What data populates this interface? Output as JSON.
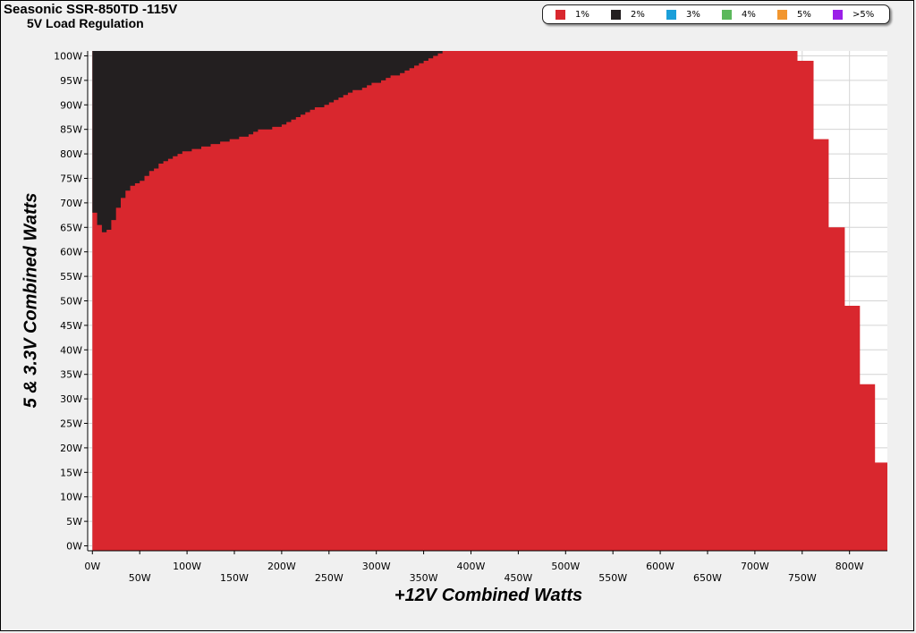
{
  "chart_data": {
    "type": "heatmap",
    "title": "Seasonic SSR-850TD -115V",
    "subtitle": "5V Load Regulation",
    "xlabel": "+12V Combined Watts",
    "ylabel": "5 & 3.3V Combined Watts",
    "xlim": [
      -5,
      840
    ],
    "ylim": [
      -1,
      101
    ],
    "grid": true,
    "legend_position": "top-right",
    "x_tick_labels_row1": [
      "0W",
      "100W",
      "200W",
      "300W",
      "400W",
      "500W",
      "600W",
      "700W",
      "800W"
    ],
    "x_tick_labels_row2": [
      "50W",
      "150W",
      "250W",
      "350W",
      "450W",
      "550W",
      "650W",
      "750W"
    ],
    "y_tick_labels": [
      "0W",
      "5W",
      "10W",
      "15W",
      "20W",
      "25W",
      "30W",
      "35W",
      "40W",
      "45W",
      "50W",
      "55W",
      "60W",
      "65W",
      "70W",
      "75W",
      "80W",
      "85W",
      "90W",
      "95W",
      "100W"
    ],
    "legend": [
      {
        "label": "1%",
        "color": "#d9272e"
      },
      {
        "label": "2%",
        "color": "#231f20"
      },
      {
        "label": "3%",
        "color": "#1b9fd9"
      },
      {
        "label": "4%",
        "color": "#5cb85c"
      },
      {
        "label": "5%",
        "color": "#f2962f"
      },
      {
        "label": ">5%",
        "color": "#9b1fe8"
      }
    ],
    "regions": {
      "load_limit_1pct": [
        [
          0,
          101
        ],
        [
          745,
          101
        ],
        [
          745,
          99
        ],
        [
          762,
          99
        ],
        [
          762,
          83
        ],
        [
          778,
          83
        ],
        [
          778,
          65
        ],
        [
          795,
          65
        ],
        [
          795,
          49
        ],
        [
          811,
          49
        ],
        [
          811,
          33
        ],
        [
          827,
          33
        ],
        [
          827,
          17
        ],
        [
          840,
          17
        ],
        [
          840,
          -1
        ],
        [
          0,
          -1
        ]
      ],
      "boundary_2pct_to_1pct": [
        [
          0,
          68.5
        ],
        [
          5,
          67
        ],
        [
          10,
          64
        ],
        [
          15,
          64
        ],
        [
          20,
          65
        ],
        [
          30,
          70
        ],
        [
          40,
          73
        ],
        [
          50,
          74
        ],
        [
          60,
          76
        ],
        [
          70,
          77.5
        ],
        [
          80,
          79
        ],
        [
          100,
          80.5
        ],
        [
          120,
          81.5
        ],
        [
          140,
          82.5
        ],
        [
          160,
          83.5
        ],
        [
          180,
          85
        ],
        [
          200,
          85.5
        ],
        [
          220,
          88
        ],
        [
          240,
          89.5
        ],
        [
          260,
          91
        ],
        [
          280,
          93
        ],
        [
          300,
          94.5
        ],
        [
          320,
          96
        ],
        [
          340,
          97.5
        ],
        [
          350,
          98.5
        ],
        [
          365,
          100
        ],
        [
          375,
          101
        ]
      ]
    }
  }
}
